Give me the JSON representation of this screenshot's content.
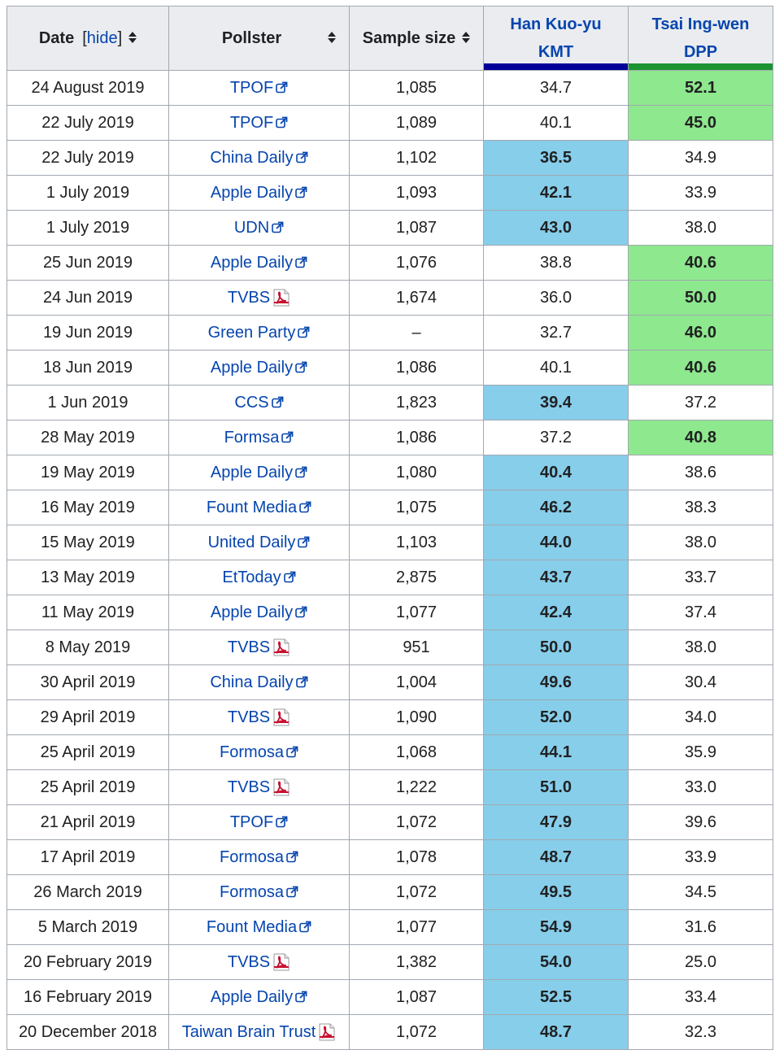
{
  "colors": {
    "kmt": "#000099",
    "dpp": "#1b9431",
    "kmt_lead_bg": "#87ceeb",
    "dpp_lead_bg": "#8ee88e",
    "link": "#0645ad"
  },
  "header": {
    "date": "Date",
    "hide_open": "[",
    "hide_link": "hide",
    "hide_close": "]",
    "pollster": "Pollster",
    "sample_size": "Sample size",
    "cand1_name": "Han Kuo-yu",
    "cand1_party": "KMT",
    "cand2_name": "Tsai Ing-wen",
    "cand2_party": "DPP"
  },
  "rows": [
    {
      "date": "24 August 2019",
      "pollster": "TPOF",
      "icon": "external-link-icon",
      "sample": "1,085",
      "han": "34.7",
      "tsai": "52.1",
      "leader": "tsai"
    },
    {
      "date": "22 July 2019",
      "pollster": "TPOF",
      "icon": "external-link-icon",
      "sample": "1,089",
      "han": "40.1",
      "tsai": "45.0",
      "leader": "tsai"
    },
    {
      "date": "22 July 2019",
      "pollster": "China Daily",
      "icon": "external-link-icon",
      "sample": "1,102",
      "han": "36.5",
      "tsai": "34.9",
      "leader": "han"
    },
    {
      "date": "1 July 2019",
      "pollster": "Apple Daily",
      "icon": "external-link-icon",
      "sample": "1,093",
      "han": "42.1",
      "tsai": "33.9",
      "leader": "han"
    },
    {
      "date": "1 July 2019",
      "pollster": "UDN",
      "icon": "external-link-icon",
      "sample": "1,087",
      "han": "43.0",
      "tsai": "38.0",
      "leader": "han"
    },
    {
      "date": "25 Jun 2019",
      "pollster": "Apple Daily",
      "icon": "external-link-icon",
      "sample": "1,076",
      "han": "38.8",
      "tsai": "40.6",
      "leader": "tsai"
    },
    {
      "date": "24 Jun 2019",
      "pollster": "TVBS",
      "icon": "pdf-icon",
      "sample": "1,674",
      "han": "36.0",
      "tsai": "50.0",
      "leader": "tsai"
    },
    {
      "date": "19 Jun 2019",
      "pollster": "Green Party",
      "icon": "external-link-icon",
      "sample": "–",
      "han": "32.7",
      "tsai": "46.0",
      "leader": "tsai"
    },
    {
      "date": "18 Jun 2019",
      "pollster": "Apple Daily",
      "icon": "external-link-icon",
      "sample": "1,086",
      "han": "40.1",
      "tsai": "40.6",
      "leader": "tsai"
    },
    {
      "date": "1 Jun 2019",
      "pollster": "CCS",
      "icon": "external-link-icon",
      "sample": "1,823",
      "han": "39.4",
      "tsai": "37.2",
      "leader": "han"
    },
    {
      "date": "28 May 2019",
      "pollster": "Formsa",
      "icon": "external-link-icon",
      "sample": "1,086",
      "han": "37.2",
      "tsai": "40.8",
      "leader": "tsai"
    },
    {
      "date": "19 May 2019",
      "pollster": "Apple Daily",
      "icon": "external-link-icon",
      "sample": "1,080",
      "han": "40.4",
      "tsai": "38.6",
      "leader": "han"
    },
    {
      "date": "16 May 2019",
      "pollster": "Fount Media",
      "icon": "external-link-icon",
      "sample": "1,075",
      "han": "46.2",
      "tsai": "38.3",
      "leader": "han"
    },
    {
      "date": "15 May 2019",
      "pollster": "United Daily",
      "icon": "external-link-icon",
      "sample": "1,103",
      "han": "44.0",
      "tsai": "38.0",
      "leader": "han"
    },
    {
      "date": "13 May 2019",
      "pollster": "EtToday",
      "icon": "external-link-icon",
      "sample": "2,875",
      "han": "43.7",
      "tsai": "33.7",
      "leader": "han"
    },
    {
      "date": "11 May 2019",
      "pollster": "Apple Daily",
      "icon": "external-link-icon",
      "sample": "1,077",
      "han": "42.4",
      "tsai": "37.4",
      "leader": "han"
    },
    {
      "date": "8 May 2019",
      "pollster": "TVBS",
      "icon": "pdf-icon",
      "sample": "951",
      "han": "50.0",
      "tsai": "38.0",
      "leader": "han"
    },
    {
      "date": "30 April 2019",
      "pollster": "China Daily",
      "icon": "external-link-icon",
      "sample": "1,004",
      "han": "49.6",
      "tsai": "30.4",
      "leader": "han"
    },
    {
      "date": "29 April 2019",
      "pollster": "TVBS",
      "icon": "pdf-icon",
      "sample": "1,090",
      "han": "52.0",
      "tsai": "34.0",
      "leader": "han"
    },
    {
      "date": "25 April 2019",
      "pollster": "Formosa",
      "icon": "external-link-icon",
      "sample": "1,068",
      "han": "44.1",
      "tsai": "35.9",
      "leader": "han"
    },
    {
      "date": "25 April 2019",
      "pollster": "TVBS",
      "icon": "pdf-icon",
      "sample": "1,222",
      "han": "51.0",
      "tsai": "33.0",
      "leader": "han"
    },
    {
      "date": "21 April 2019",
      "pollster": "TPOF",
      "icon": "external-link-icon",
      "sample": "1,072",
      "han": "47.9",
      "tsai": "39.6",
      "leader": "han"
    },
    {
      "date": "17 April 2019",
      "pollster": "Formosa",
      "icon": "external-link-icon",
      "sample": "1,078",
      "han": "48.7",
      "tsai": "33.9",
      "leader": "han"
    },
    {
      "date": "26 March 2019",
      "pollster": "Formosa",
      "icon": "external-link-icon",
      "sample": "1,072",
      "han": "49.5",
      "tsai": "34.5",
      "leader": "han"
    },
    {
      "date": "5 March 2019",
      "pollster": "Fount Media",
      "icon": "external-link-icon",
      "sample": "1,077",
      "han": "54.9",
      "tsai": "31.6",
      "leader": "han"
    },
    {
      "date": "20 February 2019",
      "pollster": "TVBS",
      "icon": "pdf-icon",
      "sample": "1,382",
      "han": "54.0",
      "tsai": "25.0",
      "leader": "han"
    },
    {
      "date": "16 February 2019",
      "pollster": "Apple Daily",
      "icon": "external-link-icon",
      "sample": "1,087",
      "han": "52.5",
      "tsai": "33.4",
      "leader": "han"
    },
    {
      "date": "20 December 2018",
      "pollster": "Taiwan Brain Trust",
      "icon": "pdf-icon",
      "sample": "1,072",
      "han": "48.7",
      "tsai": "32.3",
      "leader": "han"
    }
  ]
}
